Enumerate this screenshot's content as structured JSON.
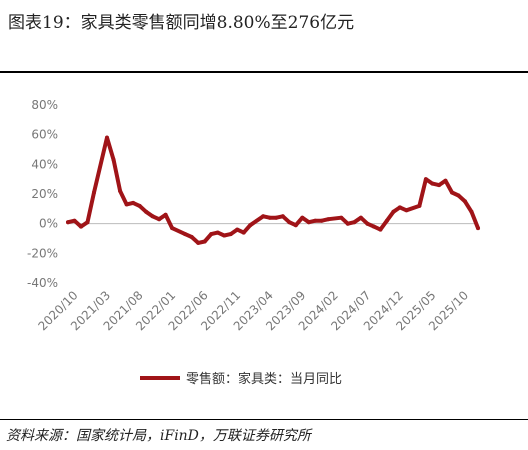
{
  "header": {
    "title": "图表19：家具类零售额同增8.80%至276亿元"
  },
  "footer": {
    "source": "资料来源：国家统计局，iFinD，万联证券研究所"
  },
  "colors": {
    "series": "#a01418",
    "zero_line": "#bbbbbb",
    "tick_text": "#777777"
  },
  "chart_data": {
    "type": "line",
    "ylim": [
      -40,
      80
    ],
    "yticks": [
      -40,
      -20,
      0,
      20,
      40,
      60,
      80
    ],
    "ytick_labels": [
      "-40%",
      "-20%",
      "0%",
      "20%",
      "40%",
      "60%",
      "80%"
    ],
    "xtick_labels": [
      "2020/10",
      "2021/03",
      "2021/08",
      "2022/01",
      "2022/06",
      "2022/11",
      "2023/04",
      "2023/09",
      "2024/02",
      "2024/07",
      "2024/12",
      "2025/05",
      "2025/10"
    ],
    "grid": false,
    "legend_position": "bottom",
    "series": [
      {
        "name": "零售额：家具类：当月同比",
        "x": [
          "2020/09",
          "2020/10",
          "2020/11",
          "2020/12",
          "2021/01",
          "2021/03",
          "2021/04",
          "2021/05",
          "2021/06",
          "2021/07",
          "2021/08",
          "2021/09",
          "2021/10",
          "2021/11",
          "2021/12",
          "2022/01",
          "2022/03",
          "2022/04",
          "2022/05",
          "2022/06",
          "2022/07",
          "2022/08",
          "2022/09",
          "2022/10",
          "2022/11",
          "2022/12",
          "2023/01",
          "2023/03",
          "2023/04",
          "2023/05",
          "2023/06",
          "2023/07",
          "2023/08",
          "2023/09",
          "2023/10",
          "2023/11",
          "2023/12",
          "2024/01",
          "2024/03",
          "2024/04",
          "2024/05",
          "2024/06",
          "2024/07",
          "2024/08",
          "2024/09",
          "2024/10",
          "2024/11",
          "2024/12",
          "2025/01",
          "2025/03",
          "2025/04",
          "2025/05",
          "2025/06",
          "2025/07",
          "2025/08",
          "2025/09",
          "2025/10",
          "2025/11",
          "2025/12"
        ],
        "values": [
          1,
          2,
          -2,
          1,
          21,
          58,
          43,
          22,
          13,
          14,
          12,
          8,
          5,
          3,
          6,
          -3,
          -7,
          -9,
          -13,
          -12,
          -7,
          -6,
          -8,
          -7,
          -4,
          -6,
          -1,
          5,
          4,
          4,
          5,
          1,
          -1,
          4,
          1,
          2,
          2,
          3,
          4,
          0,
          1,
          4,
          0,
          -2,
          -4,
          2,
          8,
          11,
          9,
          12,
          30,
          27,
          26,
          29,
          21,
          19,
          15,
          8,
          -3
        ]
      }
    ]
  }
}
